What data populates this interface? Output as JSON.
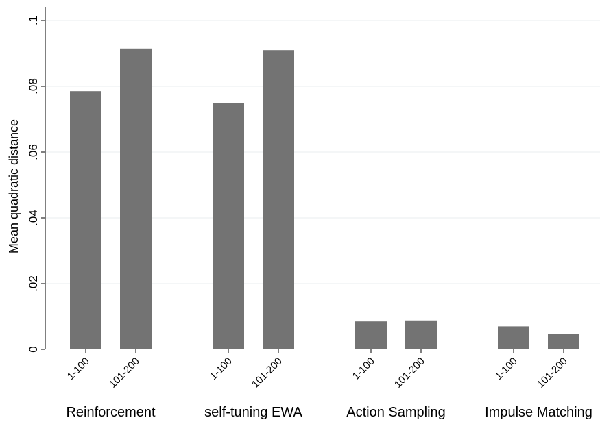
{
  "chart_data": {
    "type": "bar",
    "xlabel": "",
    "ylabel": "Mean quadratic distance",
    "ylim": [
      0,
      0.1
    ],
    "yticks": [
      0,
      0.02,
      0.04,
      0.06,
      0.08,
      0.1
    ],
    "ytick_labels": [
      "0",
      ".02",
      ".04",
      ".06",
      ".08",
      ".1"
    ],
    "grid": true,
    "bar_color": "#737373",
    "groups": [
      {
        "name": "Reinforcement",
        "categories": [
          "1-100",
          "101-200"
        ],
        "values": [
          0.0785,
          0.0915
        ]
      },
      {
        "name": "self-tuning EWA",
        "categories": [
          "1-100",
          "101-200"
        ],
        "values": [
          0.075,
          0.091
        ]
      },
      {
        "name": "Action Sampling",
        "categories": [
          "1-100",
          "101-200"
        ],
        "values": [
          0.0085,
          0.0088
        ]
      },
      {
        "name": "Impulse Matching",
        "categories": [
          "1-100",
          "101-200"
        ],
        "values": [
          0.007,
          0.0047
        ]
      }
    ]
  }
}
